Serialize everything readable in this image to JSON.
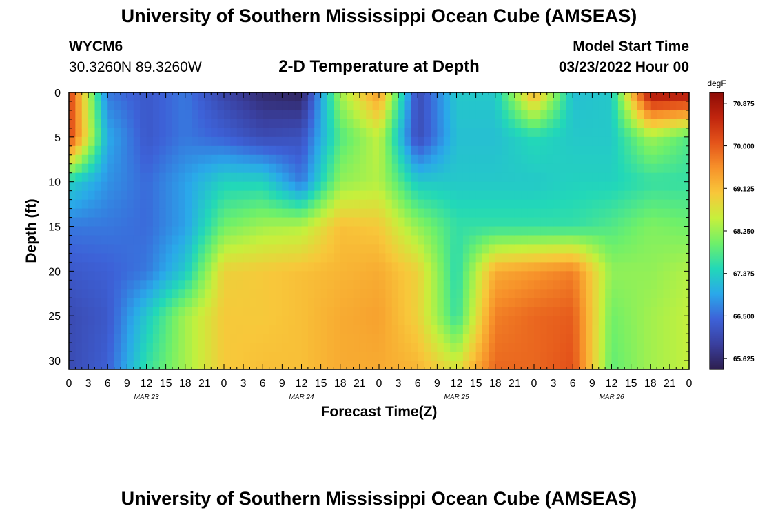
{
  "header": {
    "title": "University of Southern Mississippi Ocean Cube (AMSEAS)",
    "station_id": "WYCM6",
    "station_coords": "30.3260N  89.3260W",
    "plot_title": "2-D Temperature at Depth",
    "model_start_label": "Model Start Time",
    "model_start_value": "03/23/2022 Hour 00"
  },
  "footer": {
    "title": "University of Southern Mississippi Ocean Cube (AMSEAS)"
  },
  "chart_data": {
    "type": "heatmap",
    "xlabel": "Forecast Time(Z)",
    "ylabel": "Depth (ft)",
    "x_tick_labels": [
      "0",
      "3",
      "6",
      "9",
      "12",
      "15",
      "18",
      "21",
      "0",
      "3",
      "6",
      "9",
      "12",
      "15",
      "18",
      "21",
      "0",
      "3",
      "6",
      "9",
      "12",
      "15",
      "18",
      "21",
      "0",
      "3",
      "6",
      "9",
      "12",
      "15",
      "18",
      "21",
      "0"
    ],
    "x_date_labels": [
      {
        "label": "MAR 23",
        "hour": 12
      },
      {
        "label": "MAR 24",
        "hour": 36
      },
      {
        "label": "MAR 25",
        "hour": 60
      },
      {
        "label": "MAR 26",
        "hour": 84
      }
    ],
    "xlim_hours": [
      0,
      96
    ],
    "y_tick_labels": [
      "0",
      "5",
      "10",
      "15",
      "20",
      "25",
      "30"
    ],
    "ylim": [
      0,
      31
    ],
    "colorbar": {
      "unit": "degF",
      "ticks": [
        "70.875",
        "70.000",
        "69.125",
        "68.250",
        "67.375",
        "66.500",
        "65.625"
      ],
      "range": [
        65.4,
        71.1
      ],
      "colors": [
        "#2d1e4e",
        "#3a3f9e",
        "#3d62d8",
        "#2aa8ea",
        "#22d8b8",
        "#6ef06a",
        "#c6f03c",
        "#f8c73a",
        "#f7922a",
        "#e4541a",
        "#c0250e",
        "#8e0b06"
      ]
    },
    "hours": [
      0,
      6,
      12,
      18,
      24,
      30,
      36,
      42,
      48,
      54,
      60,
      66,
      72,
      78,
      84,
      90,
      96
    ],
    "depths": [
      0,
      5,
      10,
      15,
      20,
      25,
      31
    ],
    "values": [
      [
        70.3,
        66.6,
        66.3,
        66.6,
        66.0,
        65.6,
        65.5,
        68.3,
        69.5,
        66.1,
        67.3,
        67.3,
        69.3,
        67.2,
        67.3,
        70.9,
        70.9
      ],
      [
        70.3,
        67.0,
        66.3,
        66.6,
        66.4,
        66.1,
        66.2,
        67.8,
        68.5,
        66.1,
        67.2,
        67.2,
        67.5,
        67.3,
        67.3,
        68.3,
        67.8
      ],
      [
        67.4,
        66.8,
        66.5,
        66.9,
        67.4,
        67.4,
        66.6,
        68.2,
        68.4,
        67.3,
        67.3,
        67.3,
        67.3,
        67.4,
        67.4,
        67.6,
        67.6
      ],
      [
        66.6,
        66.6,
        66.5,
        66.9,
        68.0,
        68.3,
        68.4,
        69.1,
        69.0,
        68.2,
        67.6,
        67.6,
        67.6,
        67.6,
        67.8,
        68.1,
        68.0
      ],
      [
        66.3,
        66.4,
        66.6,
        67.3,
        68.9,
        69.0,
        69.1,
        69.2,
        69.3,
        68.9,
        67.5,
        69.3,
        69.5,
        69.7,
        68.2,
        68.2,
        68.4
      ],
      [
        66.1,
        66.3,
        67.3,
        68.3,
        69.0,
        69.0,
        69.1,
        69.3,
        69.4,
        68.9,
        67.6,
        69.7,
        69.9,
        70.0,
        68.0,
        68.3,
        68.5
      ],
      [
        66.1,
        66.4,
        67.6,
        68.3,
        69.0,
        69.1,
        69.1,
        69.3,
        69.3,
        69.2,
        68.7,
        69.9,
        69.9,
        70.1,
        67.9,
        68.3,
        68.5
      ]
    ]
  }
}
